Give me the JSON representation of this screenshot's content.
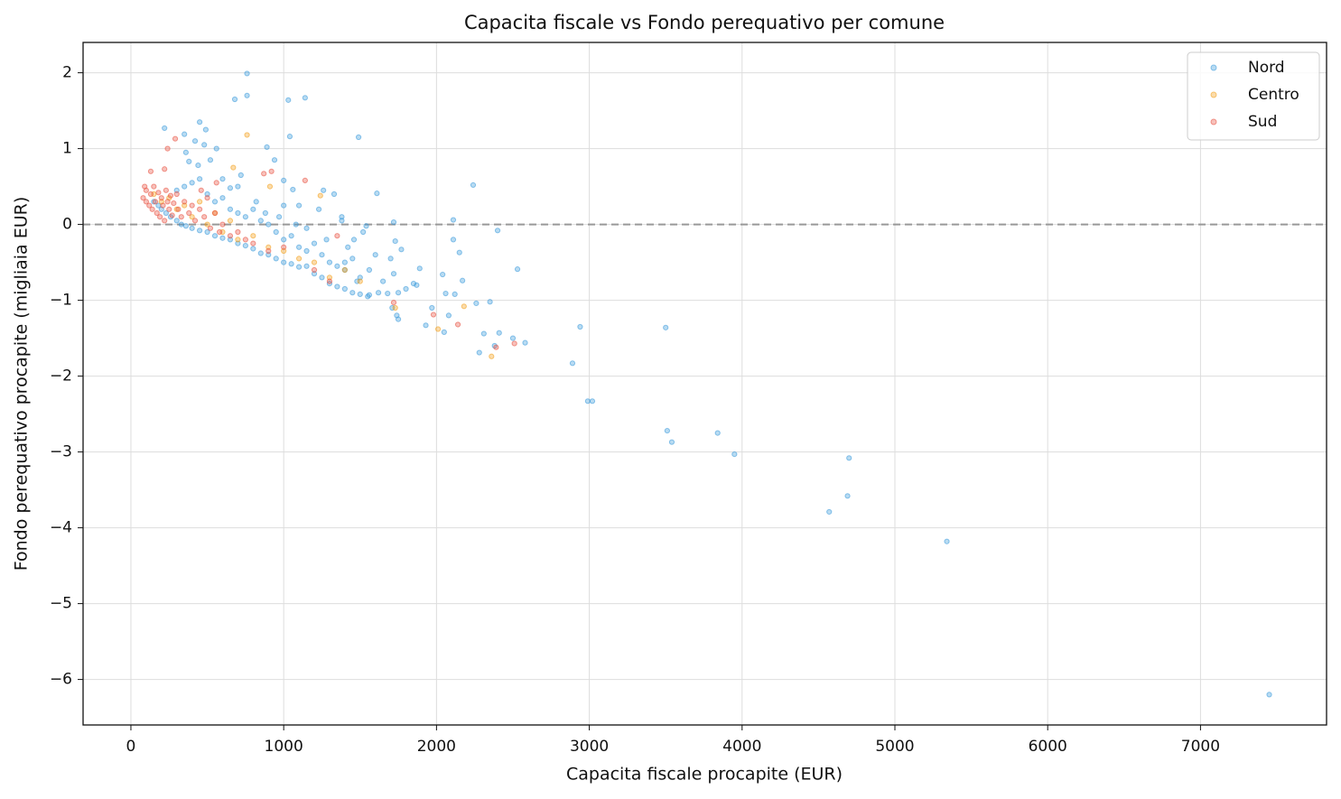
{
  "chart_data": {
    "type": "scatter",
    "title": "Capacita fiscale vs Fondo perequativo per comune",
    "x_label": "Capacita fiscale procapite (EUR)",
    "y_label": "Fondo perequativo procapite (migliaia EUR)",
    "xlim": [
      -313,
      7825
    ],
    "ylim": [
      -6.6,
      2.4
    ],
    "xticks": [
      0,
      1000,
      2000,
      3000,
      4000,
      5000,
      6000,
      7000
    ],
    "yticks": [
      {
        "value": -6,
        "label": "−6"
      },
      {
        "value": -5,
        "label": "−5"
      },
      {
        "value": -4,
        "label": "−4"
      },
      {
        "value": -3,
        "label": "−3"
      },
      {
        "value": -2,
        "label": "−2"
      },
      {
        "value": -1,
        "label": "−1"
      },
      0,
      1,
      2
    ],
    "grid": true,
    "hline": 0,
    "legend": "upper right",
    "series": [
      {
        "name": "Nord",
        "color": "#3498db",
        "x": [
          7450,
          5340,
          4690,
          4700,
          4570,
          3950,
          3840,
          3540,
          3510,
          3500,
          3020,
          2990,
          2890,
          2940,
          2580,
          2500,
          2530,
          2240,
          2400,
          2410,
          2380,
          2310,
          2280,
          2350,
          2260,
          2170,
          2150,
          2110,
          2110,
          2060,
          2120,
          2040,
          2080,
          2050,
          1970,
          1930,
          1870,
          1890,
          1770,
          1740,
          1750,
          1730,
          1720,
          1710,
          1680,
          1620,
          1610,
          1560,
          1540,
          1490,
          1520,
          1480,
          1400,
          1380,
          1330,
          1230,
          1140,
          1040,
          1030,
          760,
          760,
          680,
          890,
          450,
          490,
          220,
          350,
          420,
          480,
          560,
          720,
          1000,
          1060,
          940,
          1260,
          1100,
          150,
          180,
          200,
          230,
          260,
          300,
          330,
          360,
          400,
          450,
          500,
          550,
          600,
          650,
          700,
          750,
          800,
          850,
          900,
          950,
          1000,
          1050,
          1100,
          1150,
          1200,
          1250,
          1300,
          1350,
          1400,
          1450,
          1500,
          1550,
          300,
          350,
          400,
          450,
          500,
          550,
          600,
          650,
          700,
          750,
          800,
          850,
          900,
          950,
          1000,
          1050,
          1100,
          1150,
          1200,
          1250,
          1300,
          1350,
          1400,
          1450,
          1500,
          1600,
          1650,
          1800,
          1850,
          360,
          380,
          440,
          520,
          600,
          650,
          700,
          820,
          880,
          970,
          1000,
          1080,
          1150,
          1280,
          1380,
          1420,
          1460,
          1560,
          1700,
          1720,
          1750
        ],
        "y": [
          -6.2,
          -4.18,
          -3.58,
          -3.08,
          -3.79,
          -3.03,
          -2.75,
          -2.87,
          -2.72,
          -1.36,
          -2.33,
          -2.33,
          -1.83,
          -1.35,
          -1.56,
          -1.5,
          -0.59,
          0.52,
          -0.08,
          -1.43,
          -1.6,
          -1.44,
          -1.69,
          -1.02,
          -1.04,
          -0.74,
          -0.37,
          0.06,
          -0.2,
          -0.91,
          -0.92,
          -0.66,
          -1.2,
          -1.42,
          -1.1,
          -1.33,
          -0.8,
          -0.58,
          -0.33,
          -1.2,
          -1.25,
          -0.22,
          0.03,
          -1.1,
          -0.91,
          -0.9,
          0.41,
          -0.93,
          -0.02,
          1.15,
          -0.1,
          -0.75,
          -0.5,
          0.05,
          0.4,
          0.2,
          1.67,
          1.16,
          1.64,
          1.99,
          1.7,
          1.65,
          1.02,
          1.35,
          1.25,
          1.27,
          1.19,
          1.1,
          1.05,
          1.0,
          0.65,
          0.58,
          0.46,
          0.85,
          0.45,
          0.25,
          0.3,
          0.25,
          0.2,
          0.15,
          0.1,
          0.05,
          0.0,
          -0.02,
          -0.05,
          -0.08,
          -0.1,
          -0.15,
          -0.18,
          -0.2,
          -0.25,
          -0.28,
          -0.32,
          -0.38,
          -0.4,
          -0.45,
          -0.5,
          -0.52,
          -0.56,
          -0.55,
          -0.65,
          -0.7,
          -0.78,
          -0.82,
          -0.85,
          -0.9,
          -0.92,
          -0.95,
          0.45,
          0.5,
          0.55,
          0.6,
          0.4,
          0.3,
          0.35,
          0.2,
          0.15,
          0.1,
          0.2,
          0.05,
          0.0,
          -0.1,
          -0.2,
          -0.15,
          -0.3,
          -0.35,
          -0.25,
          -0.4,
          -0.5,
          -0.55,
          -0.6,
          -0.45,
          -0.7,
          -0.4,
          -0.75,
          -0.85,
          -0.78,
          0.95,
          0.83,
          0.78,
          0.85,
          0.6,
          0.48,
          0.5,
          0.3,
          0.15,
          0.1,
          0.25,
          0.0,
          -0.05,
          -0.2,
          0.1,
          -0.3,
          -0.2,
          -0.6,
          -0.45,
          -0.65,
          -0.9
        ]
      },
      {
        "name": "Centro",
        "color": "#f39c12",
        "x": [
          150,
          200,
          250,
          300,
          350,
          400,
          450,
          500,
          550,
          600,
          650,
          700,
          800,
          900,
          1000,
          1100,
          1200,
          1300,
          1400,
          1500,
          760,
          2180,
          2010,
          2360,
          1240,
          910,
          670,
          1730
        ],
        "y": [
          0.4,
          0.3,
          0.35,
          0.2,
          0.25,
          0.1,
          0.3,
          0.0,
          0.15,
          -0.1,
          0.05,
          -0.2,
          -0.15,
          -0.3,
          -0.35,
          -0.45,
          -0.5,
          -0.7,
          -0.6,
          -0.75,
          1.18,
          -1.08,
          -1.38,
          -1.74,
          0.38,
          0.5,
          0.75,
          -1.1
        ]
      },
      {
        "name": "Sud",
        "color": "#e74c3c",
        "x": [
          80,
          100,
          100,
          120,
          130,
          140,
          150,
          160,
          170,
          180,
          190,
          200,
          210,
          220,
          230,
          240,
          250,
          260,
          270,
          280,
          300,
          310,
          330,
          350,
          380,
          400,
          420,
          450,
          480,
          500,
          520,
          550,
          580,
          600,
          650,
          700,
          750,
          800,
          900,
          1000,
          1200,
          90,
          240,
          290,
          130,
          220,
          870,
          920,
          1140,
          1980,
          2140,
          2390,
          2510,
          1720,
          1300,
          1350,
          560,
          460
        ],
        "y": [
          0.35,
          0.3,
          0.45,
          0.25,
          0.4,
          0.2,
          0.5,
          0.3,
          0.15,
          0.42,
          0.1,
          0.35,
          0.25,
          0.05,
          0.45,
          0.3,
          0.2,
          0.38,
          0.12,
          0.28,
          0.4,
          0.2,
          0.1,
          0.3,
          0.15,
          0.25,
          0.05,
          0.2,
          0.1,
          0.35,
          -0.05,
          0.15,
          -0.1,
          0.0,
          -0.15,
          -0.1,
          -0.2,
          -0.25,
          -0.35,
          -0.3,
          -0.6,
          0.5,
          1.0,
          1.13,
          0.7,
          0.73,
          0.67,
          0.7,
          0.58,
          -1.19,
          -1.32,
          -1.62,
          -1.57,
          -1.03,
          -0.75,
          -0.15,
          0.55,
          0.45
        ]
      }
    ]
  }
}
